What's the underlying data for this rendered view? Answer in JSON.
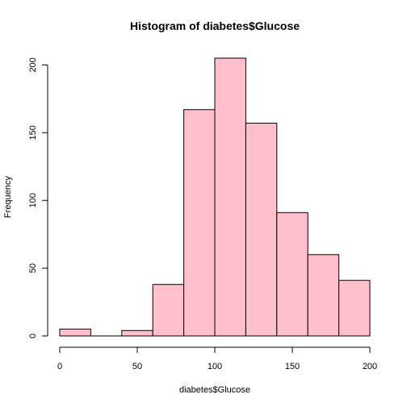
{
  "chart_data": {
    "type": "bar",
    "title": "Histogram of diabetes$Glucose",
    "xlabel": "diabetes$Glucose",
    "ylabel": "Frequency",
    "bins": [
      {
        "start": 0,
        "end": 20,
        "count": 5
      },
      {
        "start": 20,
        "end": 40,
        "count": 0
      },
      {
        "start": 40,
        "end": 60,
        "count": 4
      },
      {
        "start": 60,
        "end": 80,
        "count": 38
      },
      {
        "start": 80,
        "end": 100,
        "count": 167
      },
      {
        "start": 100,
        "end": 120,
        "count": 205
      },
      {
        "start": 120,
        "end": 140,
        "count": 157
      },
      {
        "start": 140,
        "end": 160,
        "count": 91
      },
      {
        "start": 160,
        "end": 180,
        "count": 60
      },
      {
        "start": 180,
        "end": 200,
        "count": 41
      }
    ],
    "xlim": [
      0,
      200
    ],
    "ylim": [
      0,
      205
    ],
    "x_ticks": [
      "0",
      "50",
      "100",
      "150",
      "200"
    ],
    "y_ticks": [
      "0",
      "50",
      "100",
      "150",
      "200"
    ],
    "bar_color": "#FFC0CB",
    "grid": false
  }
}
